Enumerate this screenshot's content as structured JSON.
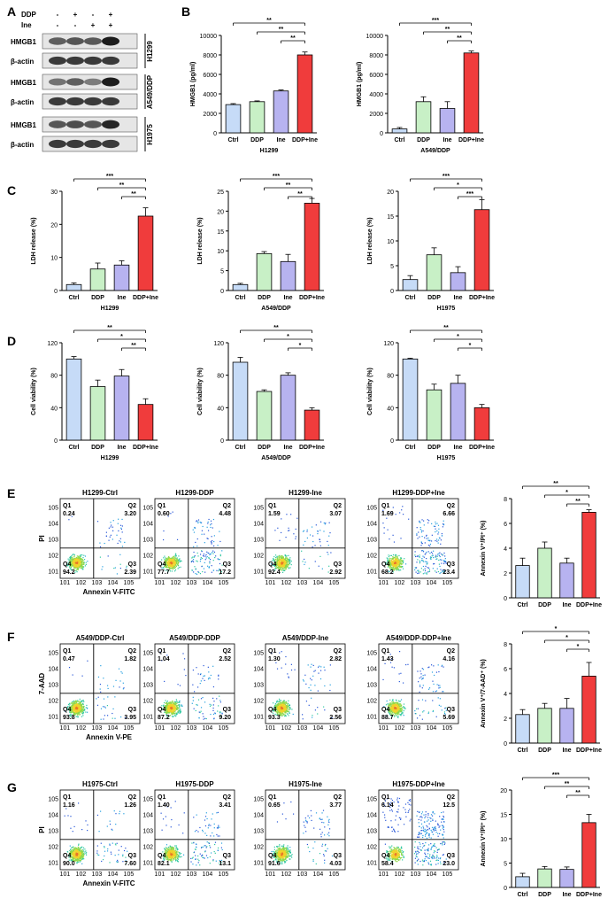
{
  "panels": {
    "A": "A",
    "B": "B",
    "C": "C",
    "D": "D",
    "E": "E",
    "F": "F",
    "G": "G"
  },
  "western": {
    "conditions": [
      {
        "name": "DDP",
        "signs": [
          "-",
          "+",
          "-",
          "+"
        ]
      },
      {
        "name": "Ine",
        "signs": [
          "-",
          "-",
          "+",
          "+"
        ]
      }
    ],
    "groups": [
      {
        "cell": "H1299",
        "rows": [
          {
            "label": "HMGB1",
            "bands": [
              0.55,
              0.6,
              0.58,
              0.9
            ]
          },
          {
            "label": "β-actin",
            "bands": [
              0.75,
              0.75,
              0.75,
              0.75
            ]
          }
        ]
      },
      {
        "cell": "A549/DDP",
        "rows": [
          {
            "label": "HMGB1",
            "bands": [
              0.45,
              0.55,
              0.4,
              0.9
            ]
          },
          {
            "label": "β-actin",
            "bands": [
              0.75,
              0.75,
              0.75,
              0.75
            ]
          }
        ]
      },
      {
        "cell": "H1975",
        "rows": [
          {
            "label": "HMGB1",
            "bands": [
              0.6,
              0.65,
              0.6,
              0.85
            ]
          },
          {
            "label": "β-actin",
            "bands": [
              0.75,
              0.75,
              0.75,
              0.75
            ]
          }
        ]
      }
    ]
  },
  "flow": {
    "E": {
      "ylabel": "PI",
      "xlabel": "Annexin V-FITC",
      "plots": [
        {
          "title": "H1299-Ctrl",
          "q1": "0.24",
          "q2": "3.20",
          "q3": "2.39",
          "q4": "94.2"
        },
        {
          "title": "H1299-DDP",
          "q1": "0.60",
          "q2": "4.48",
          "q3": "17.2",
          "q4": "77.7"
        },
        {
          "title": "H1299-Ine",
          "q1": "1.59",
          "q2": "3.07",
          "q3": "2.92",
          "q4": "92.4"
        },
        {
          "title": "H1299-DDP+Ine",
          "q1": "1.69",
          "q2": "6.66",
          "q3": "23.4",
          "q4": "68.2"
        }
      ]
    },
    "F": {
      "ylabel": "7-AAD",
      "xlabel": "Annexin V-PE",
      "plots": [
        {
          "title": "A549/DDP-Ctrl",
          "q1": "0.47",
          "q2": "1.82",
          "q3": "3.95",
          "q4": "93.8"
        },
        {
          "title": "A549/DDP-DDP",
          "q1": "1.04",
          "q2": "2.52",
          "q3": "9.20",
          "q4": "87.2"
        },
        {
          "title": "A549/DDP-Ine",
          "q1": "1.30",
          "q2": "2.82",
          "q3": "2.56",
          "q4": "93.3"
        },
        {
          "title": "A549/DDP-DDP+Ine",
          "q1": "1.43",
          "q2": "4.16",
          "q3": "5.69",
          "q4": "88.7"
        }
      ]
    },
    "G": {
      "ylabel": "PI",
      "xlabel": "Annexin V-FITC",
      "plots": [
        {
          "title": "H1975-Ctrl",
          "q1": "1.16",
          "q2": "1.26",
          "q3": "7.60",
          "q4": "90.0"
        },
        {
          "title": "H1975-DDP",
          "q1": "1.40",
          "q2": "3.41",
          "q3": "13.1",
          "q4": "82.1"
        },
        {
          "title": "H1975-Ine",
          "q1": "0.65",
          "q2": "3.77",
          "q3": "4.03",
          "q4": "91.6"
        },
        {
          "title": "H1975-DDP+Ine",
          "q1": "6.14",
          "q2": "12.5",
          "q3": "23.0",
          "q4": "58.4"
        }
      ]
    },
    "axis_ticks": [
      "10^1",
      "10^2",
      "10^3",
      "10^4",
      "10^5"
    ],
    "quadrant_labels": {
      "q1": "Q1",
      "q2": "Q2",
      "q3": "Q3",
      "q4": "Q4"
    }
  },
  "chart_data": [
    {
      "id": "B1",
      "type": "bar",
      "panel": "B",
      "title": "",
      "xlabel": "H1299",
      "ylabel": "HMGB1 (pg/ml)",
      "categories": [
        "Ctrl",
        "DDP",
        "Ine",
        "DDP+Ine"
      ],
      "values": [
        2900,
        3200,
        4300,
        8000
      ],
      "errors": [
        100,
        80,
        100,
        300
      ],
      "ylim": [
        0,
        10000
      ],
      "yticks": [
        0,
        2000,
        4000,
        6000,
        8000,
        10000
      ],
      "colors": [
        "#c6dbf7",
        "#c8f0c6",
        "#b7b3f0",
        "#f03c3c"
      ],
      "sig": [
        {
          "from": 0,
          "to": 3,
          "label": "**"
        },
        {
          "from": 1,
          "to": 3,
          "label": "**"
        },
        {
          "from": 2,
          "to": 3,
          "label": "**"
        }
      ]
    },
    {
      "id": "B2",
      "type": "bar",
      "panel": "B",
      "title": "",
      "xlabel": "A549/DDP",
      "ylabel": "HMGB1 (pg/ml)",
      "categories": [
        "Ctrl",
        "DDP",
        "Ine",
        "DDP+Ine"
      ],
      "values": [
        400,
        3200,
        2500,
        8200
      ],
      "errors": [
        150,
        500,
        700,
        200
      ],
      "ylim": [
        0,
        10000
      ],
      "yticks": [
        0,
        2000,
        4000,
        6000,
        8000,
        10000
      ],
      "colors": [
        "#c6dbf7",
        "#c8f0c6",
        "#b7b3f0",
        "#f03c3c"
      ],
      "sig": [
        {
          "from": 0,
          "to": 3,
          "label": "***"
        },
        {
          "from": 1,
          "to": 3,
          "label": "**"
        },
        {
          "from": 2,
          "to": 3,
          "label": "**"
        }
      ]
    },
    {
      "id": "C1",
      "type": "bar",
      "panel": "C",
      "title": "",
      "xlabel": "H1299",
      "ylabel": "LDH release (%)",
      "categories": [
        "Ctrl",
        "DDP",
        "Ine",
        "DDP+Ine"
      ],
      "values": [
        1.8,
        6.5,
        7.7,
        22.5
      ],
      "errors": [
        0.5,
        1.8,
        1.3,
        2.5
      ],
      "ylim": [
        0,
        30
      ],
      "yticks": [
        0,
        10,
        20,
        30
      ],
      "colors": [
        "#c6dbf7",
        "#c8f0c6",
        "#b7b3f0",
        "#f03c3c"
      ],
      "sig": [
        {
          "from": 0,
          "to": 3,
          "label": "***"
        },
        {
          "from": 1,
          "to": 3,
          "label": "**"
        },
        {
          "from": 2,
          "to": 3,
          "label": "**"
        }
      ]
    },
    {
      "id": "C2",
      "type": "bar",
      "panel": "C",
      "title": "",
      "xlabel": "A549/DDP",
      "ylabel": "LDH release (%)",
      "categories": [
        "Ctrl",
        "DDP",
        "Ine",
        "DDP+Ine"
      ],
      "values": [
        1.5,
        9.3,
        7.3,
        22.0
      ],
      "errors": [
        0.3,
        0.5,
        1.8,
        1.2
      ],
      "ylim": [
        0,
        25
      ],
      "yticks": [
        0,
        5,
        10,
        15,
        20,
        25
      ],
      "colors": [
        "#c6dbf7",
        "#c8f0c6",
        "#b7b3f0",
        "#f03c3c"
      ],
      "sig": [
        {
          "from": 0,
          "to": 3,
          "label": "***"
        },
        {
          "from": 1,
          "to": 3,
          "label": "**"
        },
        {
          "from": 2,
          "to": 3,
          "label": "**"
        }
      ]
    },
    {
      "id": "C3",
      "type": "bar",
      "panel": "C",
      "title": "",
      "xlabel": "H1975",
      "ylabel": "LDH release (%)",
      "categories": [
        "Ctrl",
        "DDP",
        "Ine",
        "DDP+Ine"
      ],
      "values": [
        2.2,
        7.2,
        3.6,
        16.3
      ],
      "errors": [
        0.8,
        1.4,
        1.2,
        2.0
      ],
      "ylim": [
        0,
        20
      ],
      "yticks": [
        0,
        5,
        10,
        15,
        20
      ],
      "colors": [
        "#c6dbf7",
        "#c8f0c6",
        "#b7b3f0",
        "#f03c3c"
      ],
      "sig": [
        {
          "from": 0,
          "to": 3,
          "label": "***"
        },
        {
          "from": 1,
          "to": 3,
          "label": "*"
        },
        {
          "from": 2,
          "to": 3,
          "label": "***"
        }
      ]
    },
    {
      "id": "D1",
      "type": "bar",
      "panel": "D",
      "title": "",
      "xlabel": "H1299",
      "ylabel": "Cell viability (%)",
      "categories": [
        "Ctrl",
        "DDP",
        "Ine",
        "DDP+Ine"
      ],
      "values": [
        100,
        66,
        79,
        44
      ],
      "errors": [
        3,
        8,
        8,
        7
      ],
      "ylim": [
        0,
        120
      ],
      "yticks": [
        0,
        40,
        80,
        120
      ],
      "colors": [
        "#c6dbf7",
        "#c8f0c6",
        "#b7b3f0",
        "#f03c3c"
      ],
      "sig": [
        {
          "from": 0,
          "to": 3,
          "label": "**"
        },
        {
          "from": 1,
          "to": 3,
          "label": "*"
        },
        {
          "from": 2,
          "to": 3,
          "label": "**"
        }
      ]
    },
    {
      "id": "D2",
      "type": "bar",
      "panel": "D",
      "title": "",
      "xlabel": "A549/DDP",
      "ylabel": "Cell viability (%)",
      "categories": [
        "Ctrl",
        "DDP",
        "Ine",
        "DDP+Ine"
      ],
      "values": [
        96,
        60,
        80,
        37
      ],
      "errors": [
        6,
        2,
        3,
        3
      ],
      "ylim": [
        0,
        120
      ],
      "yticks": [
        0,
        40,
        80,
        120
      ],
      "colors": [
        "#c6dbf7",
        "#c8f0c6",
        "#b7b3f0",
        "#f03c3c"
      ],
      "sig": [
        {
          "from": 0,
          "to": 3,
          "label": "**"
        },
        {
          "from": 1,
          "to": 3,
          "label": "*"
        },
        {
          "from": 2,
          "to": 3,
          "label": "*"
        }
      ]
    },
    {
      "id": "D3",
      "type": "bar",
      "panel": "D",
      "title": "",
      "xlabel": "H1975",
      "ylabel": "Cell viability (%)",
      "categories": [
        "Ctrl",
        "DDP",
        "Ine",
        "DDP+Ine"
      ],
      "values": [
        100,
        62,
        70,
        40
      ],
      "errors": [
        1,
        7,
        10,
        4
      ],
      "ylim": [
        0,
        120
      ],
      "yticks": [
        0,
        40,
        80,
        120
      ],
      "colors": [
        "#c6dbf7",
        "#c8f0c6",
        "#b7b3f0",
        "#f03c3c"
      ],
      "sig": [
        {
          "from": 0,
          "to": 3,
          "label": "**"
        },
        {
          "from": 1,
          "to": 3,
          "label": "*"
        },
        {
          "from": 2,
          "to": 3,
          "label": "*"
        }
      ]
    },
    {
      "id": "E",
      "type": "bar",
      "panel": "E",
      "title": "",
      "xlabel": "",
      "ylabel": "Annexin V⁺/PI⁺ (%)",
      "categories": [
        "Ctrl",
        "DDP",
        "Ine",
        "DDP+Ine"
      ],
      "values": [
        2.6,
        4.0,
        2.8,
        6.9
      ],
      "errors": [
        0.6,
        0.5,
        0.4,
        0.2
      ],
      "ylim": [
        0,
        8
      ],
      "yticks": [
        0,
        2,
        4,
        6,
        8
      ],
      "colors": [
        "#c6dbf7",
        "#c8f0c6",
        "#b7b3f0",
        "#f03c3c"
      ],
      "sig": [
        {
          "from": 0,
          "to": 3,
          "label": "**"
        },
        {
          "from": 1,
          "to": 3,
          "label": "*"
        },
        {
          "from": 2,
          "to": 3,
          "label": "**"
        }
      ]
    },
    {
      "id": "F",
      "type": "bar",
      "panel": "F",
      "title": "",
      "xlabel": "",
      "ylabel": "Annexin V⁺/7-AAD⁺ (%)",
      "categories": [
        "Ctrl",
        "DDP",
        "Ine",
        "DDP+Ine"
      ],
      "values": [
        2.3,
        2.8,
        2.8,
        5.4
      ],
      "errors": [
        0.4,
        0.4,
        0.8,
        1.1
      ],
      "ylim": [
        0,
        8
      ],
      "yticks": [
        0,
        2,
        4,
        6,
        8
      ],
      "colors": [
        "#c6dbf7",
        "#c8f0c6",
        "#b7b3f0",
        "#f03c3c"
      ],
      "sig": [
        {
          "from": 0,
          "to": 3,
          "label": "*"
        },
        {
          "from": 1,
          "to": 3,
          "label": "*"
        },
        {
          "from": 2,
          "to": 3,
          "label": "*"
        }
      ]
    },
    {
      "id": "G",
      "type": "bar",
      "panel": "G",
      "title": "",
      "xlabel": "",
      "ylabel": "Annexin V⁺/PI⁺ (%)",
      "categories": [
        "Ctrl",
        "DDP",
        "Ine",
        "DDP+Ine"
      ],
      "values": [
        2.2,
        3.8,
        3.7,
        13.3
      ],
      "errors": [
        0.7,
        0.5,
        0.5,
        1.7
      ],
      "ylim": [
        0,
        20
      ],
      "yticks": [
        0,
        5,
        10,
        15,
        20
      ],
      "colors": [
        "#c6dbf7",
        "#c8f0c6",
        "#b7b3f0",
        "#f03c3c"
      ],
      "sig": [
        {
          "from": 0,
          "to": 3,
          "label": "***"
        },
        {
          "from": 1,
          "to": 3,
          "label": "**"
        },
        {
          "from": 2,
          "to": 3,
          "label": "**"
        }
      ]
    }
  ]
}
